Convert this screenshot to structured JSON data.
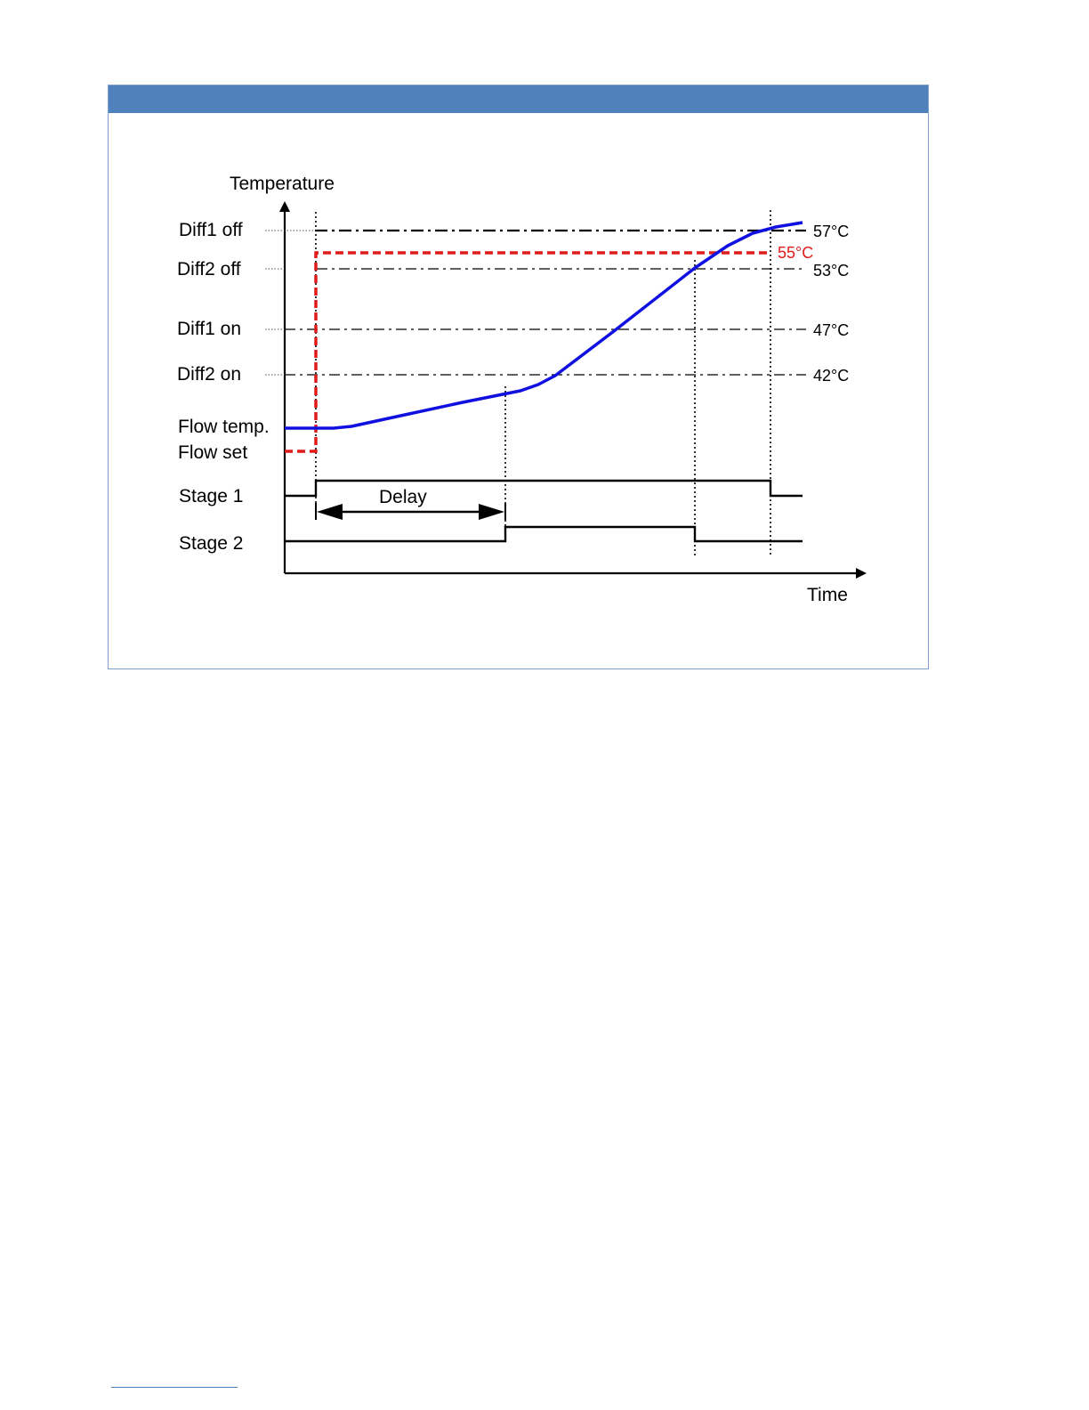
{
  "diagram": {
    "y_axis_label": "Temperature",
    "x_axis_label": "Time",
    "row_labels": {
      "diff1_off": "Diff1 off",
      "diff2_off": "Diff2 off",
      "diff1_on": "Diff1 on",
      "diff2_on": "Diff2 on",
      "flow_temp": "Flow temp.",
      "flow_set": "Flow set",
      "stage1": "Stage 1",
      "stage2": "Stage 2"
    },
    "values": {
      "diff1_off": "57°C",
      "flow_set": "55°C",
      "diff2_off": "53°C",
      "diff1_on": "47°C",
      "diff2_on": "42°C"
    },
    "delay_label": "Delay",
    "colors": {
      "flow_temp_line": "#1010e0",
      "flow_set_line": "#e01b1b",
      "header": "#4f81bd",
      "axes": "#000000"
    }
  }
}
